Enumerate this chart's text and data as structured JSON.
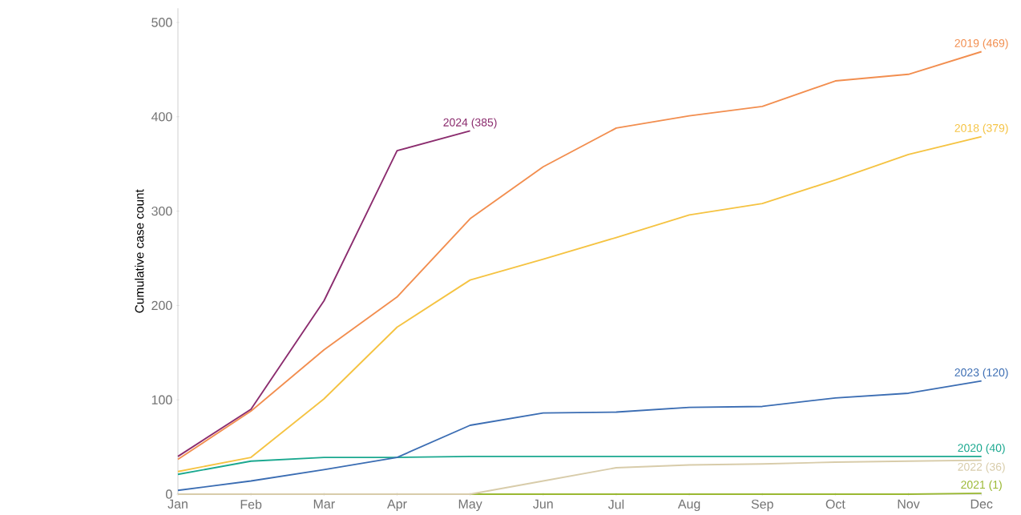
{
  "chart_data": {
    "type": "line",
    "ylabel": "Cumulative case count",
    "categories": [
      "Jan",
      "Feb",
      "Mar",
      "Apr",
      "May",
      "Jun",
      "Jul",
      "Aug",
      "Sep",
      "Oct",
      "Nov",
      "Dec"
    ],
    "ylim": [
      0,
      515
    ],
    "yticks": [
      0,
      100,
      200,
      300,
      400,
      500
    ],
    "series": [
      {
        "name": "2024 (385)",
        "color": "#8b2c6e",
        "values": [
          40,
          90,
          205,
          364,
          385,
          null,
          null,
          null,
          null,
          null,
          null,
          null
        ]
      },
      {
        "name": "2019 (469)",
        "color": "#f28e4f",
        "values": [
          37,
          88,
          153,
          209,
          292,
          347,
          388,
          401,
          411,
          438,
          445,
          469
        ]
      },
      {
        "name": "2018 (379)",
        "color": "#f5c342",
        "values": [
          24,
          39,
          101,
          177,
          227,
          249,
          272,
          296,
          308,
          333,
          360,
          379
        ]
      },
      {
        "name": "2023 (120)",
        "color": "#3b6db3",
        "values": [
          4,
          14,
          26,
          39,
          73,
          86,
          87,
          92,
          93,
          102,
          107,
          120
        ]
      },
      {
        "name": "2020 (40)",
        "color": "#1aa88f",
        "values": [
          21,
          35,
          39,
          39,
          40,
          40,
          40,
          40,
          40,
          40,
          40,
          40
        ]
      },
      {
        "name": "2022 (36)",
        "color": "#d8ccaa",
        "values": [
          0,
          0,
          0,
          0,
          0,
          14,
          28,
          31,
          32,
          34,
          35,
          36
        ]
      },
      {
        "name": "2021 (1)",
        "color": "#9ab832",
        "values": [
          0,
          0,
          0,
          0,
          0,
          0,
          0,
          0,
          0,
          0,
          0,
          1
        ]
      }
    ]
  }
}
